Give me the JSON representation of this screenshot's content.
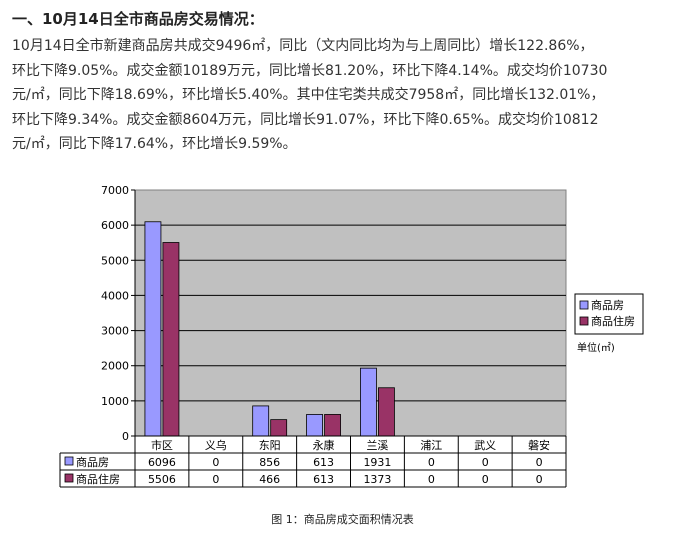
{
  "article": {
    "heading": "一、10月14日全市商品房交易情况：",
    "lines": [
      "10月14日全市新建商品房共成交9496㎡，同比（文内同比均为与上周同比）增长122.86%，",
      "环比下降9.05%。成交金额10189万元，同比增长81.20%，环比下降4.14%。成交均价10730",
      "元/㎡，同比下降18.69%，环比增长5.40%。其中住宅类共成交7958㎡，同比增长132.01%，",
      "环比下降9.34%。成交金额8604万元，同比增长91.07%，环比下降0.65%。成交均价10812",
      "元/㎡，同比下降17.64%，环比增长9.59%。"
    ]
  },
  "chart_data": {
    "type": "bar",
    "title": "",
    "caption": "图 1：商品房成交面积情况表",
    "categories": [
      "市区",
      "义乌",
      "东阳",
      "永康",
      "兰溪",
      "浦江",
      "武义",
      "磐安"
    ],
    "series": [
      {
        "name": "商品房",
        "color": "#9999ff",
        "values": [
          6096,
          0,
          856,
          613,
          1931,
          0,
          0,
          0
        ]
      },
      {
        "name": "商品住房",
        "color": "#993366",
        "values": [
          5506,
          0,
          466,
          613,
          1373,
          0,
          0,
          0
        ]
      }
    ],
    "ylim": [
      0,
      7000
    ],
    "yticks": [
      0,
      1000,
      2000,
      3000,
      4000,
      5000,
      6000,
      7000
    ],
    "unit_label": "单位(㎡)",
    "grid": true,
    "legend_position": "right",
    "data_table": true,
    "plot_background": "#c0c0c0"
  }
}
